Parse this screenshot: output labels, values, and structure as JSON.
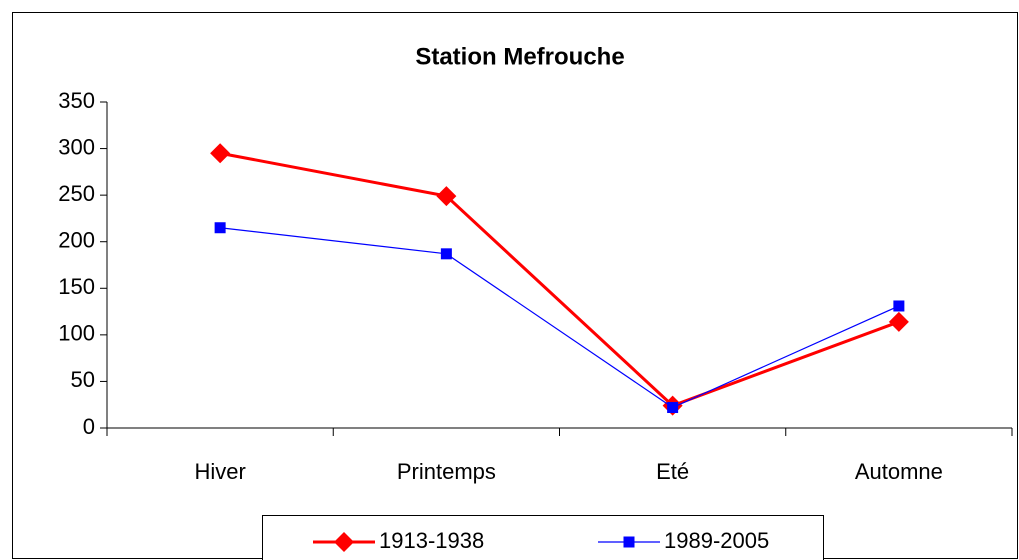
{
  "chart_data": {
    "type": "line",
    "title": "Station Mefrouche",
    "categories": [
      "Hiver",
      "Printemps",
      "Eté",
      "Automne"
    ],
    "series": [
      {
        "name": "1913-1938",
        "color": "#ff0000",
        "marker": "diamond",
        "values": [
          295,
          249,
          24,
          114
        ]
      },
      {
        "name": "1989-2005",
        "color": "#0000ff",
        "marker": "square",
        "values": [
          215,
          187,
          22,
          131
        ]
      }
    ],
    "ylim": [
      0,
      350
    ],
    "yticks": [
      0,
      50,
      100,
      150,
      200,
      250,
      300,
      350
    ],
    "grid": false,
    "legend": "bottom"
  }
}
